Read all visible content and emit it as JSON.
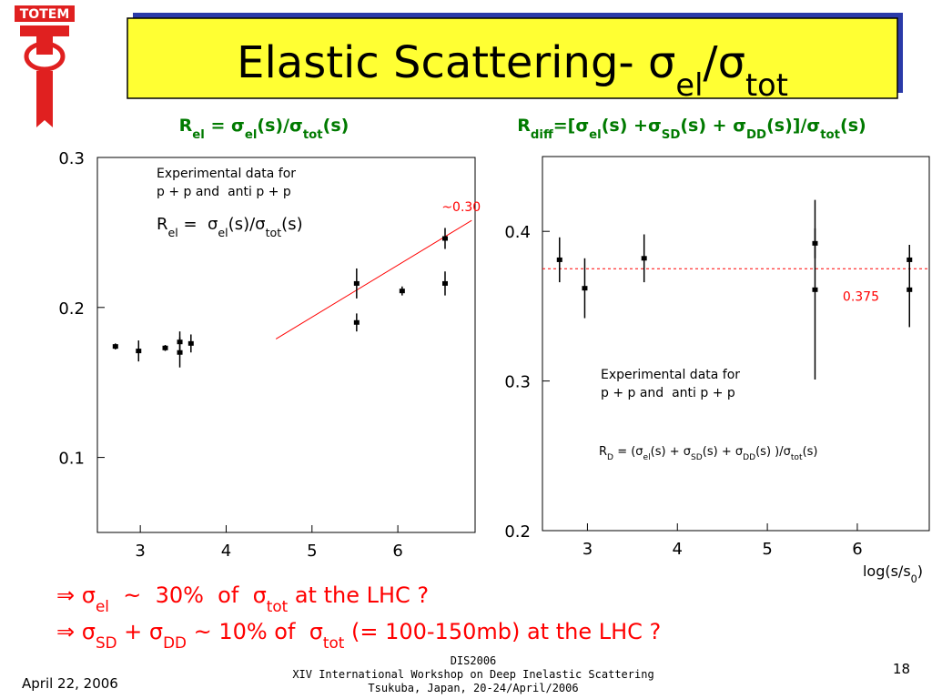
{
  "logo": "TOTEM",
  "title": [
    "Elastic Scattering- σ",
    "el",
    "/σ",
    "tot"
  ],
  "chart_data": [
    {
      "type": "scatter",
      "heading": [
        "R",
        "el",
        " = σ",
        "el",
        "(s)/σ",
        "tot",
        "(s)"
      ],
      "inset": [
        "Experimental data for",
        "p + p and  anti p + p"
      ],
      "inset_formula": [
        "R",
        "el",
        " =  σ",
        "el",
        "(s)/σ",
        "tot",
        "(s)"
      ],
      "x": [
        2.71,
        2.98,
        3.29,
        3.46,
        3.46,
        3.59,
        5.52,
        5.52,
        6.05,
        6.55,
        6.55
      ],
      "values": [
        0.174,
        0.171,
        0.173,
        0.177,
        0.17,
        0.176,
        0.216,
        0.19,
        0.211,
        0.246,
        0.216
      ],
      "errors": [
        0.002,
        0.007,
        0.002,
        0.007,
        0.01,
        0.006,
        0.01,
        0.006,
        0.003,
        0.007,
        0.008
      ],
      "color": "#000000",
      "xlim": [
        2.5,
        6.9
      ],
      "ylim": [
        0.05,
        0.3
      ],
      "xticks": [
        3,
        4,
        5,
        6
      ],
      "yticks": [
        0.1,
        0.2,
        0.3
      ],
      "grid": false,
      "fit_line": {
        "x": [
          4.58,
          6.86
        ],
        "y": [
          0.179,
          0.258
        ],
        "color": "#ff0000",
        "label": "~0.30"
      }
    },
    {
      "type": "scatter",
      "heading": [
        "R",
        "diff",
        "=[σ",
        "el",
        "(s) +σ",
        "SD",
        "(s) + σ",
        "DD",
        "(s)]/σ",
        "tot",
        "(s)"
      ],
      "inset": [
        "Experimental data for",
        "p + p and  anti p + p"
      ],
      "inset_formula": [
        "R",
        "D",
        " = (σ",
        "el",
        "(s) + σ",
        "SD",
        "(s) + σ",
        "DD",
        "(s) )/σ",
        "tot",
        "(s)"
      ],
      "x_label": [
        "log(s/s",
        "0",
        ")"
      ],
      "x": [
        2.69,
        2.97,
        3.63,
        5.53,
        5.53,
        6.58,
        6.58
      ],
      "values": [
        0.381,
        0.362,
        0.382,
        0.392,
        0.361,
        0.381,
        0.361
      ],
      "errors": [
        0.015,
        0.02,
        0.016,
        0.01,
        0.06,
        0.01,
        0.025
      ],
      "color": "#000000",
      "xlim": [
        2.5,
        6.8
      ],
      "ylim": [
        0.2,
        0.45
      ],
      "xticks": [
        3,
        4,
        5,
        6
      ],
      "yticks": [
        0.2,
        0.3,
        0.4
      ],
      "grid": false,
      "reference_line": {
        "y": 0.375,
        "label": "0.375",
        "color": "#ff0000"
      }
    }
  ],
  "bullets": [
    [
      "⇒ σ",
      "el",
      "  ~  30%  of  σ",
      "tot",
      " at the LHC ?"
    ],
    [
      "⇒ σ",
      "SD",
      " + σ",
      "DD",
      " ~ 10% of  σ",
      "tot",
      " (= 100-150mb) at the LHC ?"
    ]
  ],
  "footer": {
    "date": "April 22, 2006",
    "conference": [
      "DIS2006",
      "XIV International Workshop on Deep Inelastic Scattering",
      "Tsukuba, Japan, 20-24/April/2006"
    ],
    "page": "18"
  }
}
